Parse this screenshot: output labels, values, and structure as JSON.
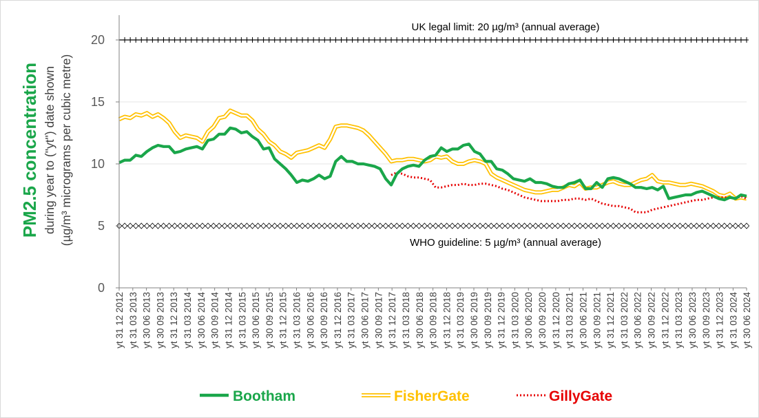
{
  "chart_data": {
    "type": "line",
    "ylabel": "PM2.5 concentration",
    "ylabel_sub": [
      "during year to (\"yt\") date shown",
      "(µg/m³ micrograms per cubic metre)"
    ],
    "ylim": [
      0,
      22
    ],
    "yticks": [
      "0",
      "5",
      "10",
      "15",
      "20"
    ],
    "grid": "horizontal",
    "legend_position": "bottom",
    "x_tick_labels": [
      "yt 31 12 2012",
      "yt 31 03 2013",
      "yt 30 06 2013",
      "yt 30 09 2013",
      "yt 31 12 2013",
      "yt 31 03 2014",
      "yt 30 06 2014",
      "yt 30 09 2014",
      "yt 31 12 2014",
      "yt 31 03 2015",
      "yt 30 06 2015",
      "yt 30 09 2015",
      "yt 31 12 2015",
      "yt 31 03 2016",
      "yt 30 06 2016",
      "yt 30 09 2016",
      "yt 31 12 2016",
      "yt 31 03 2017",
      "yt 30 06 2017",
      "yt 30 09 2017",
      "yt 31 12 2017",
      "yt 31 03 2018",
      "yt 30 06 2018",
      "yt 30 09 2018",
      "yt 31 12 2018",
      "yt 31 03 2019",
      "yt 30 06 2019",
      "yt 30 09 2019",
      "yt 31 12 2019",
      "yt 31 03 2020",
      "yt 30 06 2020",
      "yt 30 09 2020",
      "yt 31 12 2020",
      "yt 31 03 2021",
      "yt 30 06 2021",
      "yt 30 09 2021",
      "yt 31 12 2021",
      "yt 31 03 2022",
      "yt 30 06 2022",
      "yt 30 09 2022",
      "yt 31 12 2022",
      "yt 31 03 2023",
      "yt 30 06 2023",
      "yt 30 09 2023",
      "yt 31 12 2023",
      "yt 31 03 2024",
      "yt 30 06 2024"
    ],
    "reference_lines": [
      {
        "value": 20,
        "label": "UK legal limit:  20 µg/m³ (annual average)",
        "style": "plus-markers"
      },
      {
        "value": 5,
        "label": "WHO guideline:  5 µg/m³ (annual average)",
        "style": "diamond-markers"
      }
    ],
    "series": [
      {
        "name": "Bootham",
        "color": "#1aa64a",
        "style": "solid-thick",
        "points": [
          [
            0,
            10.1
          ],
          [
            1,
            10.3
          ],
          [
            2,
            10.3
          ],
          [
            3,
            10.7
          ],
          [
            4,
            10.6
          ],
          [
            5,
            11.0
          ],
          [
            6,
            11.3
          ],
          [
            7,
            11.5
          ],
          [
            8,
            11.4
          ],
          [
            9,
            11.4
          ],
          [
            10,
            10.9
          ],
          [
            11,
            11.0
          ],
          [
            12,
            11.2
          ],
          [
            13,
            11.3
          ],
          [
            14,
            11.4
          ],
          [
            15,
            11.2
          ],
          [
            16,
            11.9
          ],
          [
            17,
            12.0
          ],
          [
            18,
            12.4
          ],
          [
            19,
            12.4
          ],
          [
            20,
            12.9
          ],
          [
            21,
            12.8
          ],
          [
            22,
            12.5
          ],
          [
            23,
            12.6
          ],
          [
            24,
            12.2
          ],
          [
            25,
            11.9
          ],
          [
            26,
            11.2
          ],
          [
            27,
            11.3
          ],
          [
            28,
            10.4
          ],
          [
            29,
            10.0
          ],
          [
            30,
            9.6
          ],
          [
            31,
            9.1
          ],
          [
            32,
            8.5
          ],
          [
            33,
            8.7
          ],
          [
            34,
            8.6
          ],
          [
            35,
            8.8
          ],
          [
            36,
            9.1
          ],
          [
            37,
            8.8
          ],
          [
            38,
            9.0
          ],
          [
            39,
            10.2
          ],
          [
            40,
            10.6
          ],
          [
            41,
            10.2
          ],
          [
            42,
            10.2
          ],
          [
            43,
            10.0
          ],
          [
            44,
            10.0
          ],
          [
            45,
            9.9
          ],
          [
            46,
            9.8
          ],
          [
            47,
            9.6
          ],
          [
            48,
            8.8
          ],
          [
            49,
            8.3
          ],
          [
            50,
            9.2
          ],
          [
            51,
            9.6
          ],
          [
            52,
            9.8
          ],
          [
            53,
            9.9
          ],
          [
            54,
            9.8
          ],
          [
            55,
            10.3
          ],
          [
            56,
            10.6
          ],
          [
            57,
            10.7
          ],
          [
            58,
            11.3
          ],
          [
            59,
            11.0
          ],
          [
            60,
            11.2
          ],
          [
            61,
            11.2
          ],
          [
            62,
            11.5
          ],
          [
            63,
            11.6
          ],
          [
            64,
            11.0
          ],
          [
            65,
            10.8
          ],
          [
            66,
            10.2
          ],
          [
            67,
            10.2
          ],
          [
            68,
            9.6
          ],
          [
            69,
            9.5
          ],
          [
            70,
            9.2
          ],
          [
            71,
            8.8
          ],
          [
            72,
            8.7
          ],
          [
            73,
            8.6
          ],
          [
            74,
            8.8
          ],
          [
            75,
            8.5
          ],
          [
            76,
            8.5
          ],
          [
            77,
            8.4
          ],
          [
            78,
            8.2
          ],
          [
            79,
            8.1
          ],
          [
            80,
            8.1
          ],
          [
            81,
            8.4
          ],
          [
            82,
            8.5
          ],
          [
            83,
            8.7
          ],
          [
            84,
            8.0
          ],
          [
            85,
            8.0
          ],
          [
            86,
            8.5
          ],
          [
            87,
            8.1
          ],
          [
            88,
            8.8
          ],
          [
            89,
            8.9
          ],
          [
            90,
            8.8
          ],
          [
            91,
            8.6
          ],
          [
            92,
            8.4
          ],
          [
            93,
            8.1
          ],
          [
            94,
            8.1
          ],
          [
            95,
            8.0
          ],
          [
            96,
            8.1
          ],
          [
            97,
            7.9
          ],
          [
            98,
            8.2
          ],
          [
            99,
            7.2
          ],
          [
            100,
            7.3
          ],
          [
            101,
            7.4
          ],
          [
            102,
            7.5
          ],
          [
            103,
            7.5
          ],
          [
            104,
            7.7
          ],
          [
            105,
            7.8
          ],
          [
            106,
            7.6
          ],
          [
            107,
            7.4
          ],
          [
            108,
            7.2
          ],
          [
            109,
            7.1
          ],
          [
            110,
            7.3
          ],
          [
            111,
            7.2
          ],
          [
            112,
            7.5
          ],
          [
            113,
            7.4
          ]
        ]
      },
      {
        "name": "FisherGate",
        "color": "#ffc000",
        "style": "double-line",
        "points": [
          [
            0,
            13.6
          ],
          [
            1,
            13.8
          ],
          [
            2,
            13.7
          ],
          [
            3,
            14.0
          ],
          [
            4,
            13.9
          ],
          [
            5,
            14.1
          ],
          [
            6,
            13.8
          ],
          [
            7,
            14.0
          ],
          [
            8,
            13.7
          ],
          [
            9,
            13.3
          ],
          [
            10,
            12.6
          ],
          [
            11,
            12.1
          ],
          [
            12,
            12.3
          ],
          [
            13,
            12.2
          ],
          [
            14,
            12.1
          ],
          [
            15,
            11.8
          ],
          [
            16,
            12.6
          ],
          [
            17,
            13.0
          ],
          [
            18,
            13.7
          ],
          [
            19,
            13.8
          ],
          [
            20,
            14.3
          ],
          [
            21,
            14.1
          ],
          [
            22,
            13.9
          ],
          [
            23,
            13.9
          ],
          [
            24,
            13.5
          ],
          [
            25,
            12.8
          ],
          [
            26,
            12.4
          ],
          [
            27,
            11.8
          ],
          [
            28,
            11.5
          ],
          [
            29,
            11.0
          ],
          [
            30,
            10.8
          ],
          [
            31,
            10.5
          ],
          [
            32,
            10.9
          ],
          [
            33,
            11.0
          ],
          [
            34,
            11.1
          ],
          [
            35,
            11.3
          ],
          [
            36,
            11.5
          ],
          [
            37,
            11.3
          ],
          [
            38,
            12.0
          ],
          [
            39,
            13.0
          ],
          [
            40,
            13.1
          ],
          [
            41,
            13.1
          ],
          [
            42,
            13.0
          ],
          [
            43,
            12.9
          ],
          [
            44,
            12.7
          ],
          [
            45,
            12.3
          ],
          [
            46,
            11.8
          ],
          [
            47,
            11.3
          ],
          [
            48,
            10.8
          ],
          [
            49,
            10.2
          ],
          [
            50,
            10.3
          ],
          [
            51,
            10.3
          ],
          [
            52,
            10.4
          ],
          [
            53,
            10.4
          ],
          [
            54,
            10.3
          ],
          [
            55,
            10.2
          ],
          [
            56,
            10.3
          ],
          [
            57,
            10.6
          ],
          [
            58,
            10.5
          ],
          [
            59,
            10.6
          ],
          [
            60,
            10.2
          ],
          [
            61,
            10.0
          ],
          [
            62,
            10.0
          ],
          [
            63,
            10.2
          ],
          [
            64,
            10.3
          ],
          [
            65,
            10.2
          ],
          [
            66,
            10.0
          ],
          [
            67,
            9.2
          ],
          [
            68,
            8.9
          ],
          [
            69,
            8.7
          ],
          [
            70,
            8.5
          ],
          [
            71,
            8.3
          ],
          [
            72,
            8.1
          ],
          [
            73,
            7.9
          ],
          [
            74,
            7.8
          ],
          [
            75,
            7.7
          ],
          [
            76,
            7.7
          ],
          [
            77,
            7.8
          ],
          [
            78,
            7.9
          ],
          [
            79,
            7.9
          ],
          [
            80,
            8.1
          ],
          [
            81,
            8.3
          ],
          [
            82,
            8.2
          ],
          [
            83,
            8.5
          ],
          [
            84,
            8.0
          ],
          [
            85,
            8.1
          ],
          [
            86,
            8.1
          ],
          [
            87,
            8.3
          ],
          [
            88,
            8.5
          ],
          [
            89,
            8.6
          ],
          [
            90,
            8.4
          ],
          [
            91,
            8.3
          ],
          [
            92,
            8.3
          ],
          [
            93,
            8.5
          ],
          [
            94,
            8.7
          ],
          [
            95,
            8.8
          ],
          [
            96,
            9.1
          ],
          [
            97,
            8.6
          ],
          [
            98,
            8.5
          ],
          [
            99,
            8.5
          ],
          [
            100,
            8.4
          ],
          [
            101,
            8.3
          ],
          [
            102,
            8.3
          ],
          [
            103,
            8.4
          ],
          [
            104,
            8.3
          ],
          [
            105,
            8.2
          ],
          [
            106,
            8.0
          ],
          [
            107,
            7.8
          ],
          [
            108,
            7.5
          ],
          [
            109,
            7.4
          ],
          [
            110,
            7.6
          ],
          [
            111,
            7.2
          ],
          [
            112,
            7.3
          ],
          [
            113,
            7.2
          ]
        ]
      },
      {
        "name": "GillyGate",
        "color": "#e60000",
        "style": "dotted",
        "points": [
          [
            49,
            9.1
          ],
          [
            50,
            9.3
          ],
          [
            51,
            9.2
          ],
          [
            52,
            9.0
          ],
          [
            53,
            8.9
          ],
          [
            54,
            8.9
          ],
          [
            55,
            8.8
          ],
          [
            56,
            8.7
          ],
          [
            57,
            8.1
          ],
          [
            58,
            8.1
          ],
          [
            59,
            8.2
          ],
          [
            60,
            8.3
          ],
          [
            61,
            8.3
          ],
          [
            62,
            8.4
          ],
          [
            63,
            8.3
          ],
          [
            64,
            8.3
          ],
          [
            65,
            8.4
          ],
          [
            66,
            8.4
          ],
          [
            67,
            8.3
          ],
          [
            68,
            8.2
          ],
          [
            69,
            8.0
          ],
          [
            70,
            7.9
          ],
          [
            71,
            7.7
          ],
          [
            72,
            7.5
          ],
          [
            73,
            7.3
          ],
          [
            74,
            7.2
          ],
          [
            75,
            7.1
          ],
          [
            76,
            7.0
          ],
          [
            77,
            7.0
          ],
          [
            78,
            7.0
          ],
          [
            79,
            7.0
          ],
          [
            80,
            7.1
          ],
          [
            81,
            7.1
          ],
          [
            82,
            7.2
          ],
          [
            83,
            7.2
          ],
          [
            84,
            7.1
          ],
          [
            85,
            7.2
          ],
          [
            86,
            7.0
          ],
          [
            87,
            6.8
          ],
          [
            88,
            6.7
          ],
          [
            89,
            6.6
          ],
          [
            90,
            6.6
          ],
          [
            91,
            6.5
          ],
          [
            92,
            6.4
          ],
          [
            93,
            6.1
          ],
          [
            94,
            6.1
          ],
          [
            95,
            6.1
          ],
          [
            96,
            6.3
          ],
          [
            97,
            6.4
          ],
          [
            98,
            6.5
          ],
          [
            99,
            6.6
          ],
          [
            100,
            6.7
          ],
          [
            101,
            6.8
          ],
          [
            102,
            6.9
          ],
          [
            103,
            7.0
          ],
          [
            104,
            7.1
          ],
          [
            105,
            7.1
          ],
          [
            106,
            7.2
          ],
          [
            107,
            7.3
          ],
          [
            108,
            7.3
          ],
          [
            109,
            7.3
          ],
          [
            110,
            7.3
          ],
          [
            111,
            7.2
          ],
          [
            112,
            7.4
          ],
          [
            113,
            7.2
          ]
        ]
      }
    ]
  }
}
